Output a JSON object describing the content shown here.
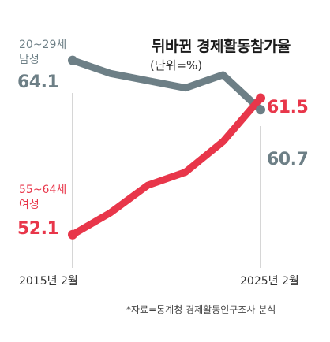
{
  "title": "뒤바뀐 경제활동참가율",
  "subtitle": "(단위=%)",
  "source": "*자료=통계청 경제활동인구조사 분석",
  "colors": {
    "men": "#6d7f86",
    "women": "#e8364a",
    "guide": "#c8c8c8"
  },
  "chart_data": {
    "type": "line",
    "title": "뒤바뀐 경제활동참가율",
    "unit": "(단위=%)",
    "x": [
      0,
      1,
      2,
      3,
      4,
      5
    ],
    "x_tick_labels": [
      "2015년 2월",
      "2025년 2월"
    ],
    "ylim": [
      51.0,
      65.0
    ],
    "grid": false,
    "series": [
      {
        "key": "men",
        "group_label_1": "20~29세",
        "group_label_2": "남성",
        "values": [
          64.1,
          63.2,
          62.7,
          62.2,
          63.1,
          60.7
        ],
        "start_label": "64.1",
        "end_label": "60.7"
      },
      {
        "key": "women",
        "group_label_1": "55~64세",
        "group_label_2": "여성",
        "values": [
          52.1,
          53.6,
          55.5,
          56.4,
          58.5,
          61.5
        ],
        "start_label": "52.1",
        "end_label": "61.5"
      }
    ]
  }
}
